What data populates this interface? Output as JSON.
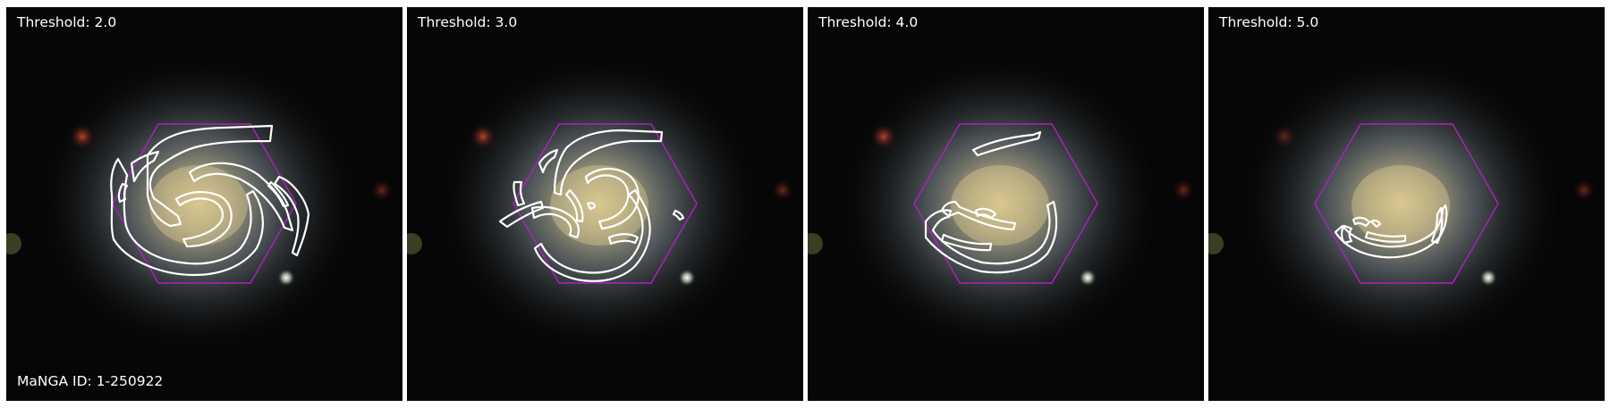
{
  "panels": [
    {
      "label": "Threshold: 2.0",
      "threshold": 2.0
    },
    {
      "label": "Threshold: 3.0",
      "threshold": 3.0
    },
    {
      "label": "Threshold: 4.0",
      "threshold": 4.0
    },
    {
      "label": "Threshold: 5.0",
      "threshold": 5.0
    }
  ],
  "manga_id_label": "MaNGA ID: 1-250922",
  "colors": {
    "hexagon": "#b020c0",
    "contour": "#ffffff",
    "background": "#050505",
    "galaxy_core": "#d8c890",
    "galaxy_halo": "#8f9aa0"
  }
}
